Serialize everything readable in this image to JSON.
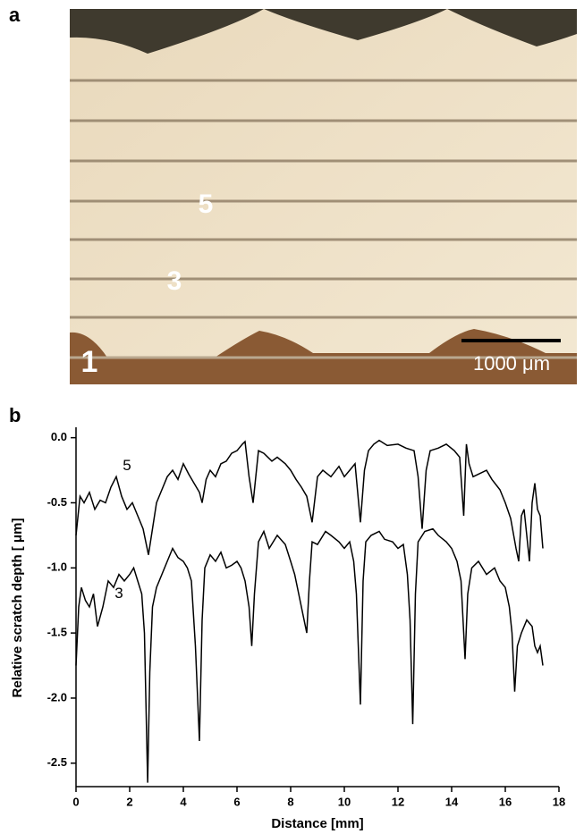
{
  "panel_labels": [
    "a",
    "b"
  ],
  "micrograph": {
    "labels": [
      "5",
      "3",
      "1"
    ],
    "scale_bar": "1000 μm"
  },
  "chart_data": {
    "type": "line",
    "xlabel": "Distance [mm]",
    "ylabel": "Relative scratch depth [ μm]",
    "xlim": [
      0,
      18
    ],
    "xticks": [
      0,
      2,
      4,
      6,
      8,
      10,
      12,
      14,
      16,
      18
    ],
    "ylim": [
      -2.68,
      0.08
    ],
    "yticks": [
      {
        "value": 0,
        "label": "0.0"
      },
      -0.5,
      {
        "value": -1,
        "label": "-1.0"
      },
      -1.5,
      {
        "value": -2,
        "label": "-2.0"
      },
      -2.5
    ],
    "series": [
      {
        "name": "5",
        "color": "#000000",
        "x": [
          0,
          0.15,
          0.3,
          0.5,
          0.7,
          0.9,
          1.1,
          1.3,
          1.5,
          1.7,
          1.9,
          2.1,
          2.3,
          2.5,
          2.7,
          2.85,
          3.0,
          3.2,
          3.4,
          3.6,
          3.8,
          4.0,
          4.2,
          4.4,
          4.6,
          4.7,
          4.85,
          5.0,
          5.2,
          5.4,
          5.6,
          5.8,
          6.0,
          6.2,
          6.3,
          6.45,
          6.6,
          6.8,
          7.0,
          7.3,
          7.5,
          7.8,
          8.0,
          8.2,
          8.4,
          8.6,
          8.8,
          9.0,
          9.2,
          9.5,
          9.8,
          10.0,
          10.2,
          10.4,
          10.6,
          10.75,
          10.9,
          11.1,
          11.3,
          11.6,
          12.0,
          12.3,
          12.6,
          12.75,
          12.9,
          13.05,
          13.2,
          13.5,
          13.8,
          14.1,
          14.3,
          14.45,
          14.55,
          14.65,
          14.8,
          15.0,
          15.3,
          15.5,
          15.8,
          16.0,
          16.2,
          16.4,
          16.5,
          16.6,
          16.7,
          16.8,
          16.9,
          17.0,
          17.1,
          17.2,
          17.3,
          17.4
        ],
        "values": [
          -0.75,
          -0.45,
          -0.5,
          -0.42,
          -0.55,
          -0.48,
          -0.5,
          -0.38,
          -0.3,
          -0.45,
          -0.55,
          -0.5,
          -0.6,
          -0.7,
          -0.9,
          -0.7,
          -0.5,
          -0.4,
          -0.3,
          -0.25,
          -0.32,
          -0.2,
          -0.28,
          -0.35,
          -0.42,
          -0.5,
          -0.32,
          -0.25,
          -0.3,
          -0.2,
          -0.18,
          -0.12,
          -0.1,
          -0.05,
          -0.03,
          -0.3,
          -0.5,
          -0.1,
          -0.12,
          -0.18,
          -0.15,
          -0.2,
          -0.25,
          -0.32,
          -0.38,
          -0.45,
          -0.65,
          -0.3,
          -0.25,
          -0.3,
          -0.22,
          -0.3,
          -0.25,
          -0.2,
          -0.65,
          -0.25,
          -0.1,
          -0.05,
          -0.02,
          -0.06,
          -0.05,
          -0.08,
          -0.1,
          -0.3,
          -0.7,
          -0.25,
          -0.1,
          -0.08,
          -0.05,
          -0.1,
          -0.15,
          -0.6,
          -0.05,
          -0.2,
          -0.3,
          -0.28,
          -0.25,
          -0.32,
          -0.4,
          -0.5,
          -0.62,
          -0.85,
          -0.95,
          -0.6,
          -0.55,
          -0.75,
          -0.95,
          -0.5,
          -0.35,
          -0.55,
          -0.6,
          -0.85
        ]
      },
      {
        "name": "3",
        "color": "#000000",
        "x": [
          0,
          0.1,
          0.2,
          0.35,
          0.5,
          0.65,
          0.8,
          1.0,
          1.2,
          1.4,
          1.6,
          1.8,
          2.0,
          2.15,
          2.3,
          2.45,
          2.55,
          2.67,
          2.75,
          2.85,
          3.0,
          3.2,
          3.4,
          3.6,
          3.8,
          4.0,
          4.15,
          4.3,
          4.45,
          4.6,
          4.7,
          4.8,
          5.0,
          5.2,
          5.4,
          5.6,
          5.8,
          6.0,
          6.15,
          6.3,
          6.45,
          6.55,
          6.65,
          6.8,
          7.0,
          7.2,
          7.5,
          7.8,
          8.0,
          8.15,
          8.3,
          8.45,
          8.6,
          8.7,
          8.8,
          9.0,
          9.3,
          9.5,
          9.8,
          10.0,
          10.2,
          10.35,
          10.45,
          10.6,
          10.7,
          10.8,
          11.0,
          11.3,
          11.5,
          11.8,
          12.0,
          12.2,
          12.35,
          12.45,
          12.55,
          12.65,
          12.75,
          13.0,
          13.3,
          13.5,
          13.8,
          14.0,
          14.2,
          14.35,
          14.5,
          14.6,
          14.75,
          15.0,
          15.3,
          15.6,
          15.8,
          16.0,
          16.15,
          16.25,
          16.35,
          16.45,
          16.6,
          16.8,
          17.0,
          17.1,
          17.2,
          17.3,
          17.4
        ],
        "values": [
          -1.75,
          -1.3,
          -1.15,
          -1.25,
          -1.3,
          -1.2,
          -1.45,
          -1.3,
          -1.1,
          -1.15,
          -1.05,
          -1.1,
          -1.05,
          -1.0,
          -1.1,
          -1.2,
          -1.5,
          -2.65,
          -1.8,
          -1.3,
          -1.15,
          -1.05,
          -0.95,
          -0.85,
          -0.92,
          -0.95,
          -1.0,
          -1.1,
          -1.6,
          -2.33,
          -1.4,
          -1.0,
          -0.9,
          -0.95,
          -0.88,
          -1.0,
          -0.98,
          -0.95,
          -1.0,
          -1.1,
          -1.3,
          -1.6,
          -1.2,
          -0.8,
          -0.72,
          -0.85,
          -0.75,
          -0.82,
          -0.95,
          -1.05,
          -1.2,
          -1.35,
          -1.5,
          -1.1,
          -0.8,
          -0.82,
          -0.72,
          -0.75,
          -0.8,
          -0.85,
          -0.8,
          -0.95,
          -1.2,
          -2.05,
          -1.1,
          -0.8,
          -0.75,
          -0.72,
          -0.78,
          -0.8,
          -0.85,
          -0.82,
          -1.05,
          -1.4,
          -2.2,
          -1.2,
          -0.8,
          -0.72,
          -0.7,
          -0.75,
          -0.8,
          -0.85,
          -0.95,
          -1.1,
          -1.7,
          -1.2,
          -1.0,
          -0.95,
          -1.05,
          -1.0,
          -1.1,
          -1.15,
          -1.3,
          -1.5,
          -1.95,
          -1.6,
          -1.5,
          -1.4,
          -1.45,
          -1.6,
          -1.65,
          -1.6,
          -1.75
        ]
      }
    ]
  }
}
